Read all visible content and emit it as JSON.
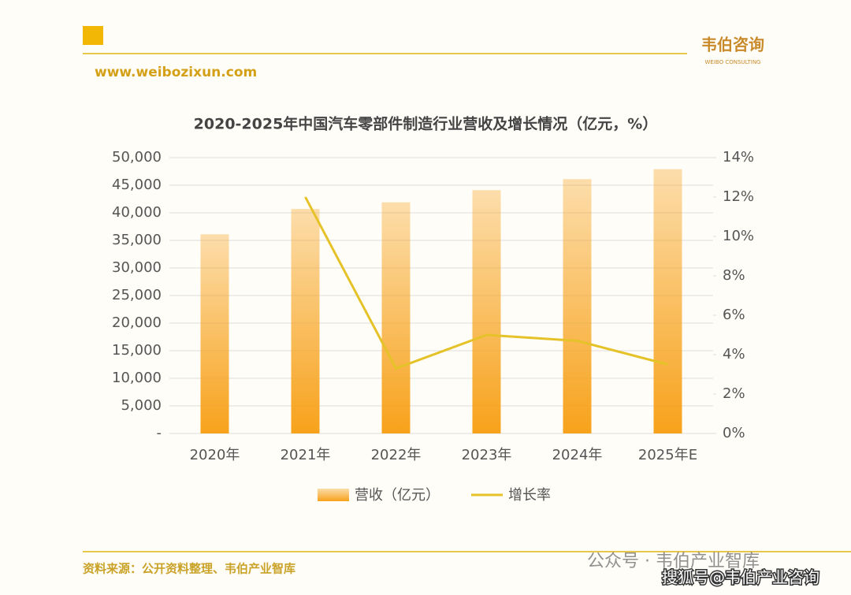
{
  "header": {
    "brand": "韦伯咨询",
    "brand_sub": "WEIBO CONSULTING",
    "url": "www.weibozixun.com"
  },
  "footer": {
    "source": "资料来源：公开资料整理、韦伯产业智库",
    "watermark": "公众号 · 韦伯产业智库",
    "watermark2": "搜狐号@韦伯产业咨询"
  },
  "chart_data": {
    "type": "bar",
    "title": "2020-2025年中国汽车零部件制造行业营收及增长情况（亿元，%）",
    "categories": [
      "2020年",
      "2021年",
      "2022年",
      "2023年",
      "2024年",
      "2025年E"
    ],
    "series": [
      {
        "name": "营收（亿元）",
        "type": "bar",
        "color": "#f7a21b",
        "values": [
          36100,
          40700,
          41900,
          44100,
          46100,
          47900
        ]
      },
      {
        "name": "增长率",
        "type": "line",
        "axis": "y2",
        "color": "#e6c229",
        "values": [
          null,
          12.0,
          3.3,
          5.0,
          4.7,
          3.5
        ]
      }
    ],
    "ylim": [
      0,
      50000
    ],
    "yticks": [
      {
        "value": 0,
        "label": "-"
      },
      {
        "value": 5000,
        "label": "5,000"
      },
      {
        "value": 10000,
        "label": "10,000"
      },
      {
        "value": 15000,
        "label": "15,000"
      },
      {
        "value": 20000,
        "label": "20,000"
      },
      {
        "value": 25000,
        "label": "25,000"
      },
      {
        "value": 30000,
        "label": "30,000"
      },
      {
        "value": 35000,
        "label": "35,000"
      },
      {
        "value": 40000,
        "label": "40,000"
      },
      {
        "value": 45000,
        "label": "45,000"
      },
      {
        "value": 50000,
        "label": "50,000"
      }
    ],
    "y2lim": [
      0,
      14
    ],
    "y2ticks": [
      {
        "value": 0,
        "label": "0%"
      },
      {
        "value": 2,
        "label": "2%"
      },
      {
        "value": 4,
        "label": "4%"
      },
      {
        "value": 6,
        "label": "6%"
      },
      {
        "value": 8,
        "label": "8%"
      },
      {
        "value": 10,
        "label": "10%"
      },
      {
        "value": 12,
        "label": "12%"
      },
      {
        "value": 14,
        "label": "14%"
      }
    ],
    "grid": true,
    "legend": "bottom"
  }
}
